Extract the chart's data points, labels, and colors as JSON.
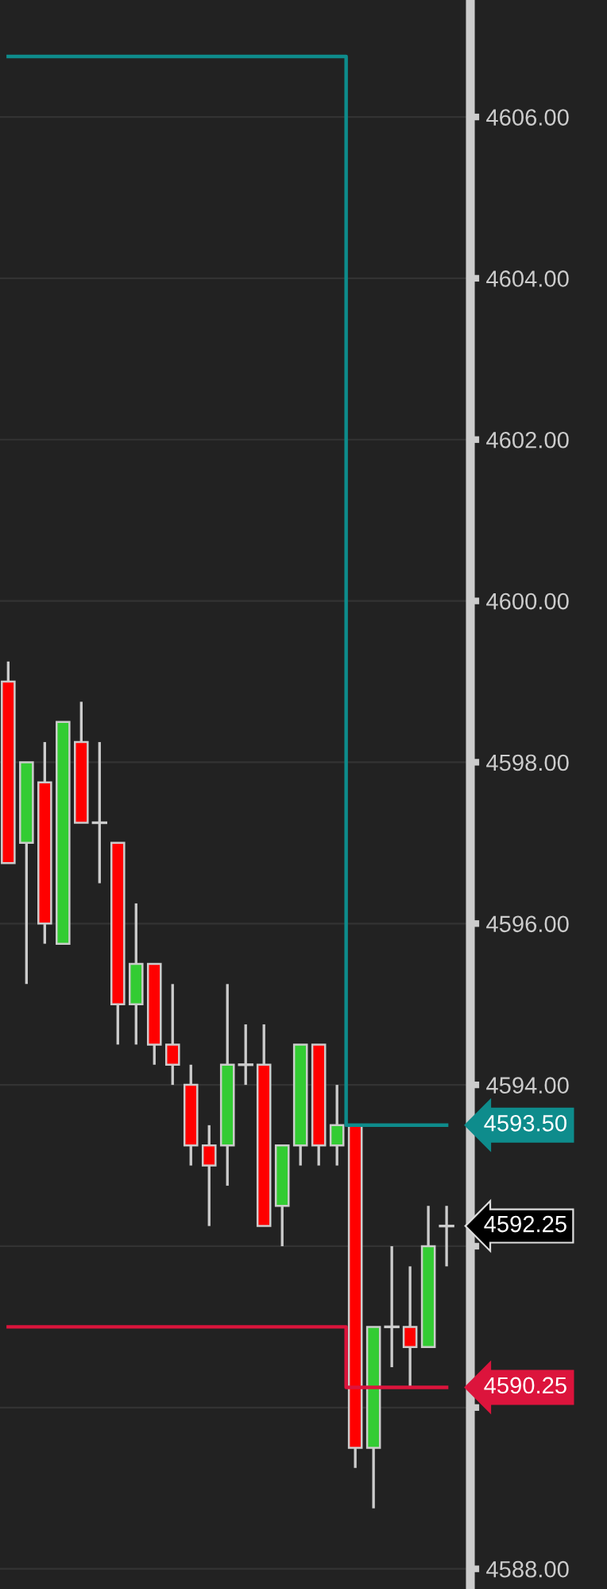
{
  "chart_data": {
    "type": "candlestick",
    "categories": [
      null,
      null,
      null,
      null,
      null,
      null,
      null,
      null,
      null,
      null,
      null,
      null,
      null,
      null,
      null,
      null,
      null,
      null,
      null,
      null,
      null,
      null,
      null,
      null,
      null
    ],
    "ohlc": [
      [
        4599.0,
        4599.25,
        4596.75,
        4596.75
      ],
      [
        4597.0,
        4598.0,
        4595.25,
        4598.0
      ],
      [
        4597.75,
        4598.25,
        4595.75,
        4596.0
      ],
      [
        4595.75,
        4598.5,
        4595.75,
        4598.5
      ],
      [
        4598.25,
        4598.75,
        4597.25,
        4597.25
      ],
      [
        4597.25,
        4598.25,
        4596.5,
        4597.25
      ],
      [
        4597.0,
        4597.0,
        4594.5,
        4595.0
      ],
      [
        4595.0,
        4596.25,
        4594.5,
        4595.5
      ],
      [
        4595.5,
        4595.5,
        4594.25,
        4594.5
      ],
      [
        4594.5,
        4595.25,
        4594.0,
        4594.25
      ],
      [
        4594.0,
        4594.25,
        4593.0,
        4593.25
      ],
      [
        4593.25,
        4593.5,
        4592.25,
        4593.0
      ],
      [
        4593.25,
        4595.25,
        4592.75,
        4594.25
      ],
      [
        4594.25,
        4594.75,
        4594.0,
        4594.25
      ],
      [
        4594.25,
        4594.75,
        4592.25,
        4592.25
      ],
      [
        4592.5,
        4593.25,
        4592.0,
        4593.25
      ],
      [
        4593.25,
        4594.5,
        4593.0,
        4594.5
      ],
      [
        4594.5,
        4594.5,
        4593.0,
        4593.25
      ],
      [
        4593.25,
        4594.0,
        4593.0,
        4593.5
      ],
      [
        4593.5,
        4593.5,
        4589.25,
        4589.5
      ],
      [
        4589.5,
        4591.0,
        4588.75,
        4591.0
      ],
      [
        4591.0,
        4592.0,
        4590.5,
        4591.0
      ],
      [
        4591.0,
        4591.75,
        4590.25,
        4590.75
      ],
      [
        4590.75,
        4592.5,
        4590.75,
        4592.0
      ],
      [
        4592.25,
        4592.5,
        4591.75,
        4592.25
      ]
    ],
    "series": [
      {
        "type": "step",
        "color": "#0e8c8c",
        "values": [
          4606.75,
          4606.75,
          4606.75,
          4606.75,
          4606.75,
          4606.75,
          4606.75,
          4606.75,
          4606.75,
          4606.75,
          4606.75,
          4606.75,
          4606.75,
          4606.75,
          4606.75,
          4606.75,
          4606.75,
          4606.75,
          4606.75,
          4593.5,
          4593.5,
          4593.5,
          4593.5,
          4593.5,
          4593.5
        ],
        "value_labels": [
          null,
          null,
          null,
          null,
          null,
          null,
          null,
          null,
          null,
          null,
          null,
          null,
          null,
          null,
          null,
          null,
          null,
          null,
          null,
          null,
          null,
          null,
          null,
          null,
          "4593.50"
        ]
      },
      {
        "type": "step",
        "color": "#dc143c",
        "values": [
          4591.0,
          4591.0,
          4591.0,
          4591.0,
          4591.0,
          4591.0,
          4591.0,
          4591.0,
          4591.0,
          4591.0,
          4591.0,
          4591.0,
          4591.0,
          4591.0,
          4591.0,
          4591.0,
          4591.0,
          4591.0,
          4591.0,
          4590.25,
          4590.25,
          4590.25,
          4590.25,
          4590.25,
          4590.25
        ],
        "value_labels": [
          null,
          null,
          null,
          null,
          null,
          null,
          null,
          null,
          null,
          null,
          null,
          null,
          null,
          null,
          null,
          null,
          null,
          null,
          null,
          null,
          null,
          null,
          null,
          null,
          "4590.25"
        ]
      }
    ],
    "annotations": [
      "4592.25"
    ],
    "ylim": [
      4587.75,
      4607.45
    ],
    "yticks": [
      {
        "value": 4588,
        "label": "4588.00"
      },
      {
        "value": 4590,
        "label": null
      },
      {
        "value": 4592,
        "label": null
      },
      {
        "value": 4594,
        "label": "4594.00"
      },
      {
        "value": 4596,
        "label": "4596.00"
      },
      {
        "value": 4598,
        "label": "4598.00"
      },
      {
        "value": 4600,
        "label": "4600.00"
      },
      {
        "value": 4602,
        "label": "4602.00"
      },
      {
        "value": 4604,
        "label": "4604.00"
      },
      {
        "value": 4606,
        "label": "4606.00"
      }
    ],
    "grid": "y",
    "legend": false
  }
}
